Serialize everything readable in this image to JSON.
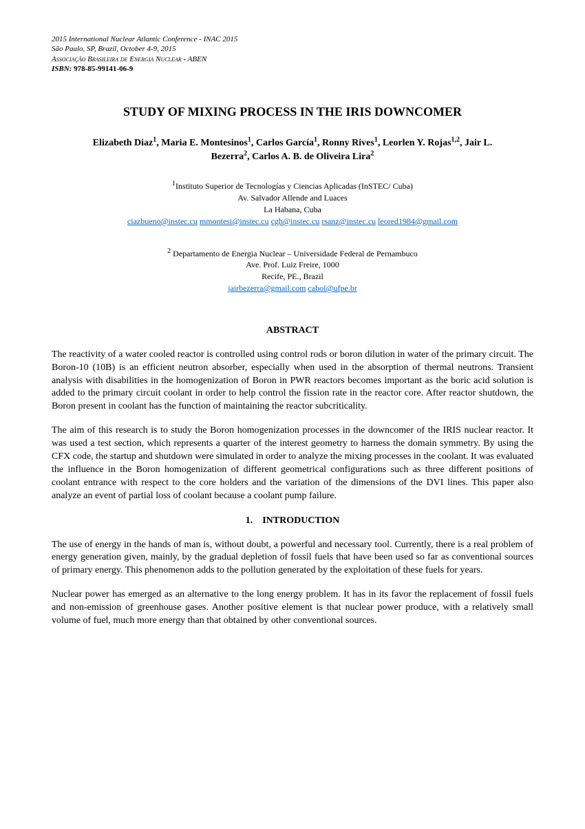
{
  "header": {
    "line1": "2015 International Nuclear Atlantic Conference - INAC 2015",
    "line2": "São Paulo, SP, Brazil, October 4-9, 2015",
    "line3": "Associação Brasileira de Energia Nuclear - ABEN",
    "isbn_label": "ISBN:",
    "isbn_value": "978-85-99141-06-9"
  },
  "title": "STUDY OF MIXING PROCESS IN THE IRIS DOWNCOMER",
  "authors_html": "Elizabeth Diaz<span class='sup'>1</span>, Maria E. Montesinos<span class='sup'>1</span>, Carlos García<span class='sup'>1</span>, Ronny Rives<span class='sup'>1</span>, Leorlen Y. Rojas<span class='sup'>1,2</span>, Jair L. Bezerra<span class='sup'>2</span>, Carlos A. B. de Oliveira Lira<span class='sup'>2</span>",
  "affiliation1": {
    "sup": "1",
    "name": "Instituto Superior de Tecnologías y Ciencias Aplicadas (InSTEC/ Cuba)",
    "addr1": "Av. Salvador Allende and Luaces",
    "addr2": "La Habana, Cuba",
    "emails": [
      "ciazbueno@instec.cu",
      "mmontesi@instec.cu",
      "cgh@instec.cu",
      "rsanz@instec.cu",
      "leored1984@gmail.com"
    ]
  },
  "affiliation2": {
    "sup": "2",
    "name": " Departamento de Energia Nuclear – Universidade Federal de Pernambuco",
    "addr1": "Ave. Prof. Luiz Freire, 1000",
    "addr2": "Recife, PE., Brazil",
    "emails": [
      "jairbezerra@gmail.com",
      "cabol@ufpe.br"
    ]
  },
  "abstract_heading": "ABSTRACT",
  "abstract_p1": "The reactivity of a water cooled reactor is controlled using control rods or boron dilution in water of the primary circuit. The Boron-10 (10B) is an efficient neutron absorber, especially when used in the absorption of thermal neutrons. Transient analysis with disabilities in the homogenization of Boron in PWR reactors becomes important as the boric acid solution is added to the primary circuit coolant in order to help control the fission rate in the reactor core. After reactor shutdown, the Boron present in coolant has the function of maintaining the reactor subcriticality.",
  "abstract_p2": "The aim of this research is to study the Boron homogenization processes in the downcomer of the IRIS nuclear reactor. It was used a test section, which represents a quarter of the interest geometry to harness the domain symmetry. By using the CFX code, the startup and shutdown were simulated in order to analyze the mixing processes in the coolant. It was evaluated the influence in the Boron homogenization of different geometrical configurations such as three different positions of coolant entrance with respect to the core holders and the variation of the dimensions of the DVI lines. This paper also analyze an event of partial loss of coolant because a coolant pump failure.",
  "section1_heading": "1. INTRODUCTION",
  "intro_p1": "The use of energy in the hands of man is, without doubt, a powerful and necessary tool. Currently, there is a real problem of energy generation given, mainly, by the gradual depletion of fossil fuels that have been used so far as conventional sources of primary energy. This phenomenon adds to the pollution generated by the exploitation of these fuels for years.",
  "intro_p2": "Nuclear power has emerged as an alternative to the long energy problem. It has in its favor the replacement of fossil fuels and non-emission of greenhouse gases. Another positive element is that nuclear power produce, with a relatively small volume of fuel, much more energy than that obtained by other conventional sources.",
  "styles": {
    "link_color": "#0563c1",
    "text_color": "#000000",
    "background_color": "#ffffff",
    "body_fontsize": 14,
    "header_fontsize": 11,
    "title_fontsize": 18,
    "affiliation_fontsize": 12
  }
}
